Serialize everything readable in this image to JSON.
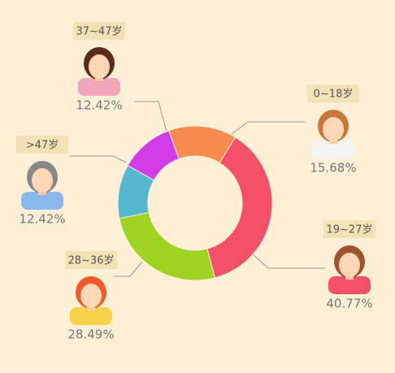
{
  "chart_data": {
    "type": "donut",
    "categories": [
      "0~18岁",
      "19~27岁",
      "28~36岁",
      ">47岁",
      "37~47岁"
    ],
    "values": [
      15.68,
      40.77,
      28.49,
      12.42,
      12.42
    ],
    "value_labels": [
      "15.68%",
      "40.77%",
      "28.49%",
      "12.42%",
      "12.42%"
    ],
    "colors": [
      "#f68b4f",
      "#f5506a",
      "#9fd321",
      "#55b8cd",
      "#d13ce6"
    ]
  }
}
